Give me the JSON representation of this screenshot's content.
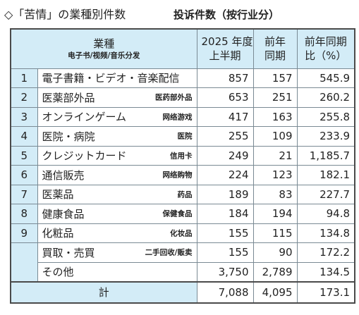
{
  "title": {
    "main": "◇「苦情」の業種別件数",
    "sub": "投诉件数（按行业分）"
  },
  "table": {
    "header": {
      "category": "業種",
      "category_sub": "电子书/视频/音乐分发",
      "current": [
        "2025 年度",
        "上半期"
      ],
      "previous": [
        "前年",
        "同期"
      ],
      "ratio": [
        "前年同期",
        "比（%）"
      ]
    },
    "rows": [
      {
        "rank": "1",
        "name": "電子書籍・ビデオ・音楽配信",
        "current": "857",
        "previous": "157",
        "ratio": "545.9"
      },
      {
        "rank": "2",
        "name": "医薬部外品",
        "name_zh": "医药部外品",
        "current": "653",
        "previous": "251",
        "ratio": "260.2"
      },
      {
        "rank": "3",
        "name": "オンラインゲーム",
        "name_zh": "网络游戏",
        "current": "417",
        "previous": "163",
        "ratio": "255.8"
      },
      {
        "rank": "4",
        "name": "医院・病院",
        "name_zh": "医院",
        "current": "255",
        "previous": "109",
        "ratio": "233.9"
      },
      {
        "rank": "5",
        "name": "クレジットカード",
        "name_zh": "信用卡",
        "current": "249",
        "previous": "21",
        "ratio": "1,185.7"
      },
      {
        "rank": "6",
        "name": "通信販売",
        "name_zh": "网络购物",
        "current": "224",
        "previous": "123",
        "ratio": "182.1"
      },
      {
        "rank": "7",
        "name": "医薬品",
        "name_zh": "药品",
        "current": "189",
        "previous": "83",
        "ratio": "227.7"
      },
      {
        "rank": "8",
        "name": "健康食品",
        "name_zh": "保健食品",
        "current": "184",
        "previous": "194",
        "ratio": "94.8"
      },
      {
        "rank": "9",
        "name": "化粧品",
        "name_zh": "化妆品",
        "current": "155",
        "previous": "115",
        "ratio": "134.8"
      },
      {
        "name": "買取・売買",
        "name_zh": "二手回收/贩卖",
        "current": "155",
        "previous": "90",
        "ratio": "172.2"
      },
      {
        "name": "その他",
        "current": "3,750",
        "previous": "2,789",
        "ratio": "134.5"
      }
    ],
    "total": {
      "label": "計",
      "current": "7,088",
      "previous": "4,095",
      "ratio": "173.1"
    }
  }
}
